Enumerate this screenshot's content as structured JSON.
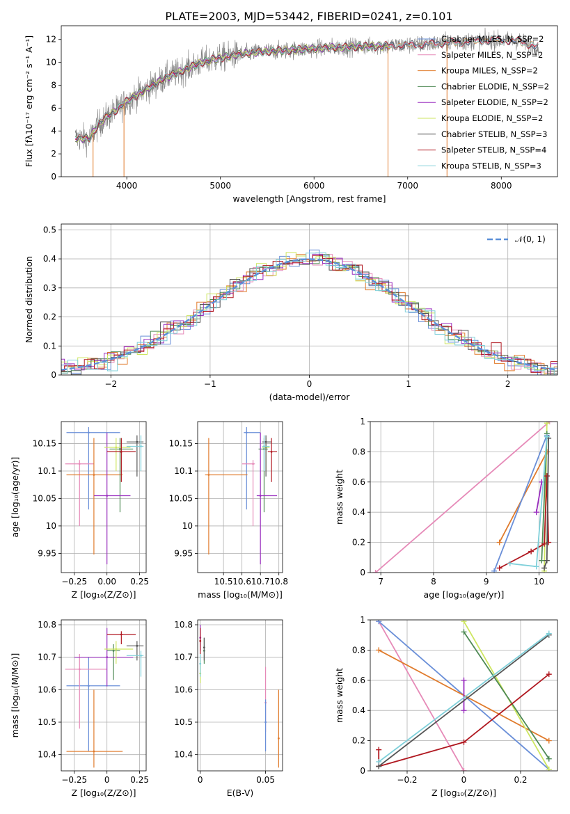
{
  "colors": {
    "chabrier_miles": "#6a8fd8",
    "salpeter_miles": "#e68ab8",
    "kroupa_miles": "#e07b2c",
    "chabrier_elodie": "#4f8a55",
    "salpeter_elodie": "#9b30c0",
    "kroupa_elodie": "#cde660",
    "chabrier_stelib": "#555555",
    "salpeter_stelib": "#b01820",
    "kroupa_stelib": "#7fd0da",
    "data": "#808080",
    "normal": "#5b8fd8",
    "grid": "#b0b0b0"
  },
  "chart_data": [
    {
      "id": "spectrum",
      "type": "line",
      "title": "PLATE=2003, MJD=53442, FIBERID=0241, z=0.101",
      "xlabel": "wavelength [Angstrom, rest frame]",
      "ylabel": "Flux [fλ10⁻¹⁷ erg cm⁻² s⁻¹ A⁻¹]",
      "xlim": [
        3300,
        8600
      ],
      "ylim": [
        0,
        13.2
      ],
      "xticks": [
        4000,
        5000,
        6000,
        7000,
        8000
      ],
      "yticks": [
        0,
        2,
        4,
        6,
        8,
        10,
        12
      ],
      "legend_position": "upper-right",
      "series": [
        {
          "name": "Chabrier MILES, N_SSP=2"
        },
        {
          "name": "Salpeter MILES, N_SSP=2"
        },
        {
          "name": "Kroupa MILES, N_SSP=2"
        },
        {
          "name": "Chabrier ELODIE, N_SSP=2"
        },
        {
          "name": "Salpeter ELODIE, N_SSP=2"
        },
        {
          "name": "Kroupa ELODIE, N_SSP=2"
        },
        {
          "name": "Chabrier STELIB, N_SSP=3"
        },
        {
          "name": "Salpeter STELIB, N_SSP=4"
        },
        {
          "name": "Kroupa STELIB, N_SSP=3"
        }
      ],
      "continuum": {
        "x": [
          3450,
          3600,
          3700,
          3800,
          3900,
          4000,
          4200,
          4400,
          4600,
          4800,
          5000,
          5200,
          5400,
          5600,
          5800,
          6000,
          6200,
          6400,
          6600,
          6800,
          7000,
          7200,
          7400,
          7600,
          7800,
          8000,
          8200,
          8400,
          8600
        ],
        "y": [
          3.4,
          3.3,
          4.6,
          5.3,
          5.9,
          6.6,
          7.6,
          8.6,
          9.3,
          10.0,
          10.4,
          10.7,
          10.9,
          11.0,
          11.1,
          11.2,
          11.3,
          11.35,
          11.4,
          11.45,
          11.5,
          11.6,
          11.7,
          11.8,
          11.9,
          11.95,
          11.85,
          11.3,
          10.9
        ]
      },
      "drops": [
        3640,
        3970,
        6790,
        7420
      ]
    },
    {
      "id": "residuals",
      "type": "line",
      "xlabel": "(data-model)/error",
      "ylabel": "Normed distribution",
      "xlim": [
        -2.5,
        2.5
      ],
      "ylim": [
        0,
        0.52
      ],
      "xticks": [
        -2,
        -1,
        0,
        1,
        2
      ],
      "yticks": [
        0.0,
        0.1,
        0.2,
        0.3,
        0.4,
        0.5
      ],
      "legend_position": "upper-right",
      "legend": "𝒩(0, 1)",
      "grid": true,
      "bin_width": 0.1,
      "reference_curve": "standard normal"
    },
    {
      "id": "age_vs_Z",
      "type": "scatter",
      "xlabel": "Z [log₁₀(Z/Z⊙)]",
      "ylabel": "age  [log₁₀(age/yr)]",
      "xlim": [
        -0.35,
        0.3
      ],
      "ylim": [
        9.915,
        10.19
      ],
      "xticks": [
        -0.25,
        0.0,
        0.25
      ],
      "yticks": [
        9.95,
        10.0,
        10.05,
        10.1,
        10.15
      ],
      "grid": true,
      "points": [
        {
          "key": "chabrier_miles",
          "x": -0.14,
          "y": 10.17,
          "xmin": -0.31,
          "xmax": 0.1,
          "ymin": 10.03,
          "ymax": 10.18
        },
        {
          "key": "salpeter_miles",
          "x": -0.21,
          "y": 10.113,
          "xmin": -0.32,
          "xmax": -0.1,
          "ymin": 10.0,
          "ymax": 10.12
        },
        {
          "key": "kroupa_miles",
          "x": -0.1,
          "y": 10.093,
          "xmin": -0.31,
          "xmax": 0.12,
          "ymin": 9.948,
          "ymax": 10.16
        },
        {
          "key": "chabrier_elodie",
          "x": 0.1,
          "y": 10.14,
          "xmin": 0.02,
          "xmax": 0.2,
          "ymin": 10.025,
          "ymax": 10.16
        },
        {
          "key": "salpeter_elodie",
          "x": 0.0,
          "y": 10.055,
          "xmin": -0.1,
          "xmax": 0.18,
          "ymin": 9.93,
          "ymax": 10.17
        },
        {
          "key": "kroupa_elodie",
          "x": 0.07,
          "y": 10.143,
          "xmin": -0.02,
          "xmax": 0.18,
          "ymin": 10.1,
          "ymax": 10.16
        },
        {
          "key": "chabrier_stelib",
          "x": 0.23,
          "y": 10.153,
          "xmin": 0.15,
          "xmax": 0.28,
          "ymin": 10.09,
          "ymax": 10.165
        },
        {
          "key": "salpeter_stelib",
          "x": 0.11,
          "y": 10.135,
          "xmin": 0.0,
          "xmax": 0.22,
          "ymin": 10.08,
          "ymax": 10.16
        },
        {
          "key": "kroupa_stelib",
          "x": 0.26,
          "y": 10.145,
          "xmin": 0.15,
          "xmax": 0.28,
          "ymin": 10.1,
          "ymax": 10.165
        }
      ]
    },
    {
      "id": "age_vs_mass",
      "type": "scatter",
      "xlabel": "mass [log₁₀(M/M⊙)]",
      "xlim": [
        10.36,
        10.82
      ],
      "ylim": [
        9.915,
        10.19
      ],
      "xticks": [
        10.5,
        10.6,
        10.7,
        10.8
      ],
      "yticks": [
        9.95,
        10.0,
        10.05,
        10.1,
        10.15
      ],
      "grid": true,
      "points": [
        {
          "key": "chabrier_miles",
          "x": 10.625,
          "y": 10.17,
          "xmin": 10.61,
          "xmax": 10.7,
          "ymin": 10.03,
          "ymax": 10.18
        },
        {
          "key": "salpeter_miles",
          "x": 10.66,
          "y": 10.113,
          "xmin": 10.6,
          "xmax": 10.67,
          "ymin": 10.0,
          "ymax": 10.12
        },
        {
          "key": "kroupa_miles",
          "x": 10.42,
          "y": 10.093,
          "xmin": 10.4,
          "xmax": 10.63,
          "ymin": 9.948,
          "ymax": 10.16
        },
        {
          "key": "chabrier_elodie",
          "x": 10.72,
          "y": 10.14,
          "xmin": 10.69,
          "xmax": 10.74,
          "ymin": 10.025,
          "ymax": 10.16
        },
        {
          "key": "salpeter_elodie",
          "x": 10.7,
          "y": 10.055,
          "xmin": 10.68,
          "xmax": 10.79,
          "ymin": 9.93,
          "ymax": 10.17
        },
        {
          "key": "kroupa_elodie",
          "x": 10.73,
          "y": 10.143,
          "xmin": 10.71,
          "xmax": 10.75,
          "ymin": 10.1,
          "ymax": 10.16
        },
        {
          "key": "chabrier_stelib",
          "x": 10.73,
          "y": 10.153,
          "xmin": 10.71,
          "xmax": 10.76,
          "ymin": 10.09,
          "ymax": 10.165
        },
        {
          "key": "salpeter_stelib",
          "x": 10.76,
          "y": 10.135,
          "xmin": 10.74,
          "xmax": 10.79,
          "ymin": 10.08,
          "ymax": 10.16
        },
        {
          "key": "kroupa_stelib",
          "x": 10.72,
          "y": 10.145,
          "xmin": 10.71,
          "xmax": 10.75,
          "ymin": 10.1,
          "ymax": 10.165
        }
      ]
    },
    {
      "id": "weight_vs_age",
      "type": "line",
      "xlabel": "age  [log₁₀(age/yr)]",
      "ylabel": "mass weight",
      "xlim": [
        6.8,
        10.35
      ],
      "ylim": [
        0,
        1
      ],
      "xticks": [
        7,
        8,
        9,
        10
      ],
      "yticks": [
        0.0,
        0.2,
        0.4,
        0.6,
        0.8,
        1.0
      ],
      "grid": true,
      "series": [
        {
          "key": "salpeter_miles",
          "x": [
            6.9,
            10.2
          ],
          "y": [
            0.0,
            1.0
          ]
        },
        {
          "key": "kroupa_miles",
          "x": [
            9.25,
            10.15
          ],
          "y": [
            0.2,
            0.8
          ]
        },
        {
          "key": "chabrier_miles",
          "x": [
            9.15,
            10.15
          ],
          "y": [
            0.01,
            0.91
          ]
        },
        {
          "key": "salpeter_elodie",
          "x": [
            9.95,
            10.05
          ],
          "y": [
            0.4,
            0.6
          ]
        },
        {
          "key": "kroupa_elodie",
          "x": [
            10.1,
            10.15
          ],
          "y": [
            0.01,
            0.99
          ]
        },
        {
          "key": "chabrier_elodie",
          "x": [
            10.05,
            10.15
          ],
          "y": [
            0.08,
            0.92
          ]
        },
        {
          "key": "salpeter_stelib",
          "x": [
            9.25,
            9.85,
            10.1,
            10.15,
            10.18
          ],
          "y": [
            0.03,
            0.14,
            0.19,
            0.64,
            0.2
          ]
        },
        {
          "key": "chabrier_stelib",
          "x": [
            10.1,
            10.15,
            10.18
          ],
          "y": [
            0.03,
            0.08,
            0.89
          ]
        },
        {
          "key": "kroupa_stelib",
          "x": [
            9.45,
            9.95,
            10.15
          ],
          "y": [
            0.06,
            0.04,
            0.9
          ]
        }
      ]
    },
    {
      "id": "mass_vs_Z",
      "type": "scatter",
      "xlabel": "Z [log₁₀(Z/Z⊙)]",
      "ylabel": "mass [log₁₀(M/M⊙)]",
      "xlim": [
        -0.35,
        0.3
      ],
      "ylim": [
        10.35,
        10.815
      ],
      "xticks": [
        -0.25,
        0.0,
        0.25
      ],
      "yticks": [
        10.4,
        10.5,
        10.6,
        10.7,
        10.8
      ],
      "grid": true,
      "points": [
        {
          "key": "chabrier_miles",
          "x": -0.14,
          "y": 10.612,
          "xmin": -0.31,
          "xmax": 0.1,
          "ymin": 10.41,
          "ymax": 10.7
        },
        {
          "key": "salpeter_miles",
          "x": -0.21,
          "y": 10.663,
          "xmin": -0.32,
          "xmax": 0.0,
          "ymin": 10.48,
          "ymax": 10.71
        },
        {
          "key": "kroupa_miles",
          "x": -0.1,
          "y": 10.41,
          "xmin": -0.31,
          "xmax": 0.12,
          "ymin": 10.36,
          "ymax": 10.6
        },
        {
          "key": "chabrier_elodie",
          "x": 0.05,
          "y": 10.72,
          "xmin": 0.0,
          "xmax": 0.1,
          "ymin": 10.63,
          "ymax": 10.74
        },
        {
          "key": "salpeter_elodie",
          "x": 0.0,
          "y": 10.7,
          "xmin": -0.25,
          "xmax": 0.2,
          "ymin": 10.61,
          "ymax": 10.79
        },
        {
          "key": "kroupa_elodie",
          "x": 0.07,
          "y": 10.725,
          "xmin": -0.02,
          "xmax": 0.2,
          "ymin": 10.68,
          "ymax": 10.75
        },
        {
          "key": "chabrier_stelib",
          "x": 0.23,
          "y": 10.735,
          "xmin": 0.15,
          "xmax": 0.28,
          "ymin": 10.69,
          "ymax": 10.75
        },
        {
          "key": "salpeter_stelib",
          "x": 0.11,
          "y": 10.77,
          "xmin": 0.0,
          "xmax": 0.22,
          "ymin": 10.74,
          "ymax": 10.78
        },
        {
          "key": "kroupa_stelib",
          "x": 0.26,
          "y": 10.705,
          "xmin": 0.15,
          "xmax": 0.28,
          "ymin": 10.64,
          "ymax": 10.72
        }
      ]
    },
    {
      "id": "mass_vs_ebv",
      "type": "scatter",
      "xlabel": "E(B-V)",
      "xlim": [
        -0.002,
        0.063
      ],
      "ylim": [
        10.35,
        10.815
      ],
      "xticks": [
        0.0,
        0.05
      ],
      "yticks": [
        10.4,
        10.5,
        10.6,
        10.7,
        10.8
      ],
      "grid": true,
      "points": [
        {
          "key": "salpeter_elodie",
          "x": 0.0,
          "y": 10.76,
          "ymin": 10.72,
          "ymax": 10.8
        },
        {
          "key": "salpeter_stelib",
          "x": 0.0,
          "y": 10.75,
          "ymin": 10.71,
          "ymax": 10.79
        },
        {
          "key": "kroupa_elodie",
          "x": 0.0,
          "y": 10.65,
          "ymin": 10.62,
          "ymax": 10.69
        },
        {
          "key": "kroupa_stelib",
          "x": 0.0,
          "y": 10.68,
          "ymin": 10.64,
          "ymax": 10.71
        },
        {
          "key": "chabrier_elodie",
          "x": 0.003,
          "y": 10.72,
          "ymin": 10.68,
          "ymax": 10.76
        },
        {
          "key": "chabrier_stelib",
          "x": 0.003,
          "y": 10.73,
          "ymin": 10.69,
          "ymax": 10.76
        },
        {
          "key": "salpeter_miles",
          "x": 0.05,
          "y": 10.56,
          "ymin": 10.47,
          "ymax": 10.67
        },
        {
          "key": "chabrier_miles",
          "x": 0.05,
          "y": 10.5,
          "ymin": 10.41,
          "ymax": 10.57
        },
        {
          "key": "kroupa_miles",
          "x": 0.06,
          "y": 10.45,
          "ymin": 10.36,
          "ymax": 10.6
        }
      ]
    },
    {
      "id": "weight_vs_Z",
      "type": "line",
      "xlabel": "Z [log₁₀(Z/Z⊙)]",
      "ylabel": "mass weight",
      "xlim": [
        -0.33,
        0.33
      ],
      "ylim": [
        0,
        1
      ],
      "xticks": [
        -0.2,
        0.0,
        0.2
      ],
      "yticks": [
        0.0,
        0.2,
        0.4,
        0.6,
        0.8,
        1.0
      ],
      "grid": true,
      "series": [
        {
          "key": "salpeter_miles",
          "x": [
            -0.3,
            0.0
          ],
          "y": [
            0.99,
            0.0
          ]
        },
        {
          "key": "chabrier_miles",
          "x": [
            -0.3,
            0.3
          ],
          "y": [
            0.99,
            0.01
          ]
        },
        {
          "key": "kroupa_miles",
          "x": [
            -0.3,
            0.3
          ],
          "y": [
            0.8,
            0.2
          ]
        },
        {
          "key": "kroupa_elodie",
          "x": [
            0.0,
            0.3
          ],
          "y": [
            0.99,
            0.01
          ]
        },
        {
          "key": "chabrier_elodie",
          "x": [
            0.0,
            0.3
          ],
          "y": [
            0.92,
            0.08
          ]
        },
        {
          "key": "salpeter_elodie",
          "x": [
            0.0,
            0.0
          ],
          "y": [
            0.4,
            0.6
          ]
        },
        {
          "key": "salpeter_stelib",
          "x": [
            -0.3,
            -0.3,
            0.0,
            0.3
          ],
          "y": [
            0.14,
            0.03,
            0.19,
            0.64
          ]
        },
        {
          "key": "chabrier_stelib",
          "x": [
            -0.3,
            0.3
          ],
          "y": [
            0.03,
            0.9
          ]
        },
        {
          "key": "kroupa_stelib",
          "x": [
            -0.3,
            0.3
          ],
          "y": [
            0.06,
            0.91
          ]
        }
      ]
    }
  ]
}
